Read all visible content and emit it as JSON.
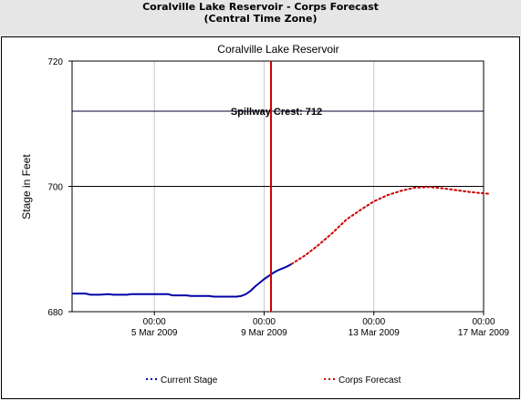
{
  "header": {
    "title": "Coralville Lake Reservoir - Corps Forecast",
    "subtitle": "(Central Time Zone)"
  },
  "chart_data": {
    "type": "line",
    "title": "Coralville Lake Reservoir",
    "xlabel": "",
    "ylabel": "Stage in Feet",
    "ylim": [
      680,
      720
    ],
    "xlim": [
      "2009-03-02 00:00",
      "2009-03-17 00:00"
    ],
    "y_ticks": [
      "720",
      "700",
      "680"
    ],
    "x_ticks": [
      {
        "date": "2009-03-05 00:00",
        "time": "00:00",
        "label": "5 Mar 2009"
      },
      {
        "date": "2009-03-09 00:00",
        "time": "00:00",
        "label": "9 Mar 2009"
      },
      {
        "date": "2009-03-13 00:00",
        "time": "00:00",
        "label": "13 Mar 2009"
      },
      {
        "date": "2009-03-17 00:00",
        "time": "00:00",
        "label": "17 Mar 2009"
      }
    ],
    "grid": {
      "vertical": true,
      "horizontal": false
    },
    "legend_placement": "bottom",
    "now_marker": {
      "x": "2009-03-09 06:00",
      "color": "#cc0000"
    },
    "reference_lines": [
      {
        "y": 712,
        "label": "Spillway Crest: 712",
        "color": "#000033"
      },
      {
        "y": 700,
        "label": "",
        "color": "#000000"
      }
    ],
    "series": [
      {
        "name": "Current Stage",
        "color": "#0000aa",
        "style": "solid",
        "points": [
          [
            "2009-03-02 00:00",
            682.9
          ],
          [
            "2009-03-02 12:00",
            682.9
          ],
          [
            "2009-03-02 16:00",
            682.7
          ],
          [
            "2009-03-03 00:00",
            682.7
          ],
          [
            "2009-03-03 08:00",
            682.8
          ],
          [
            "2009-03-03 12:00",
            682.7
          ],
          [
            "2009-03-04 00:00",
            682.7
          ],
          [
            "2009-03-04 04:00",
            682.8
          ],
          [
            "2009-03-05 12:00",
            682.8
          ],
          [
            "2009-03-05 16:00",
            682.6
          ],
          [
            "2009-03-06 04:00",
            682.6
          ],
          [
            "2009-03-06 08:00",
            682.5
          ],
          [
            "2009-03-07 00:00",
            682.5
          ],
          [
            "2009-03-07 04:00",
            682.4
          ],
          [
            "2009-03-08 00:00",
            682.4
          ],
          [
            "2009-03-08 04:00",
            682.5
          ],
          [
            "2009-03-08 08:00",
            682.8
          ],
          [
            "2009-03-08 12:00",
            683.3
          ],
          [
            "2009-03-08 16:00",
            684.0
          ],
          [
            "2009-03-08 20:00",
            684.6
          ],
          [
            "2009-03-09 00:00",
            685.2
          ],
          [
            "2009-03-09 04:00",
            685.7
          ],
          [
            "2009-03-09 08:00",
            686.2
          ],
          [
            "2009-03-09 12:00",
            686.6
          ],
          [
            "2009-03-09 16:00",
            686.9
          ],
          [
            "2009-03-09 20:00",
            687.2
          ],
          [
            "2009-03-10 00:00",
            687.6
          ]
        ]
      },
      {
        "name": "Corps Forecast",
        "color": "#cc0000",
        "style": "dotted",
        "points": [
          [
            "2009-03-10 00:00",
            687.6
          ],
          [
            "2009-03-10 12:00",
            689.0
          ],
          [
            "2009-03-11 00:00",
            690.7
          ],
          [
            "2009-03-11 12:00",
            692.6
          ],
          [
            "2009-03-12 00:00",
            694.7
          ],
          [
            "2009-03-12 12:00",
            696.2
          ],
          [
            "2009-03-13 00:00",
            697.6
          ],
          [
            "2009-03-13 12:00",
            698.6
          ],
          [
            "2009-03-14 00:00",
            699.3
          ],
          [
            "2009-03-14 12:00",
            699.8
          ],
          [
            "2009-03-15 00:00",
            699.9
          ],
          [
            "2009-03-15 12:00",
            699.7
          ],
          [
            "2009-03-16 00:00",
            699.4
          ],
          [
            "2009-03-16 12:00",
            699.1
          ],
          [
            "2009-03-17 00:00",
            698.9
          ],
          [
            "2009-03-17 06:00",
            698.8
          ]
        ]
      }
    ]
  }
}
